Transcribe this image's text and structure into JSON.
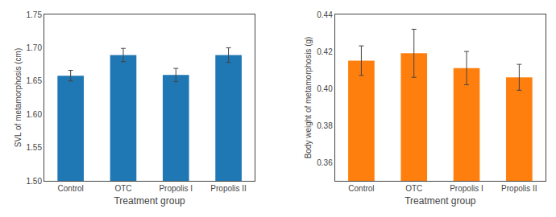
{
  "chart_data": [
    {
      "type": "bar",
      "categories": [
        "Control",
        "OTC",
        "Propolis I",
        "Propolis II"
      ],
      "values": [
        1.658,
        1.689,
        1.659,
        1.689
      ],
      "errors": [
        0.008,
        0.01,
        0.01,
        0.011
      ],
      "y_label": "SVL of metamorphosis (cm)",
      "x_label": "Treatment group",
      "ylim": [
        1.5,
        1.75
      ],
      "yticks": [
        {
          "value": 1.5,
          "label": "1.50"
        },
        1.55,
        {
          "value": 1.6,
          "label": "1.60"
        },
        1.65,
        {
          "value": 1.7,
          "label": "1.70"
        },
        1.75
      ],
      "grid": false
    },
    {
      "type": "bar",
      "categories": [
        "Control",
        "OTC",
        "Propolis I",
        "Propolis II"
      ],
      "values": [
        0.415,
        0.419,
        0.411,
        0.406
      ],
      "errors": [
        0.008,
        0.013,
        0.009,
        0.007
      ],
      "y_label": "Body weight of metamorphosis (g)",
      "x_label": "Treatment group",
      "ylim": [
        0.35,
        0.44
      ],
      "yticks": [
        0.36,
        0.38,
        {
          "value": 0.4,
          "label": "0.40"
        },
        0.42,
        0.44
      ],
      "grid": false
    }
  ]
}
